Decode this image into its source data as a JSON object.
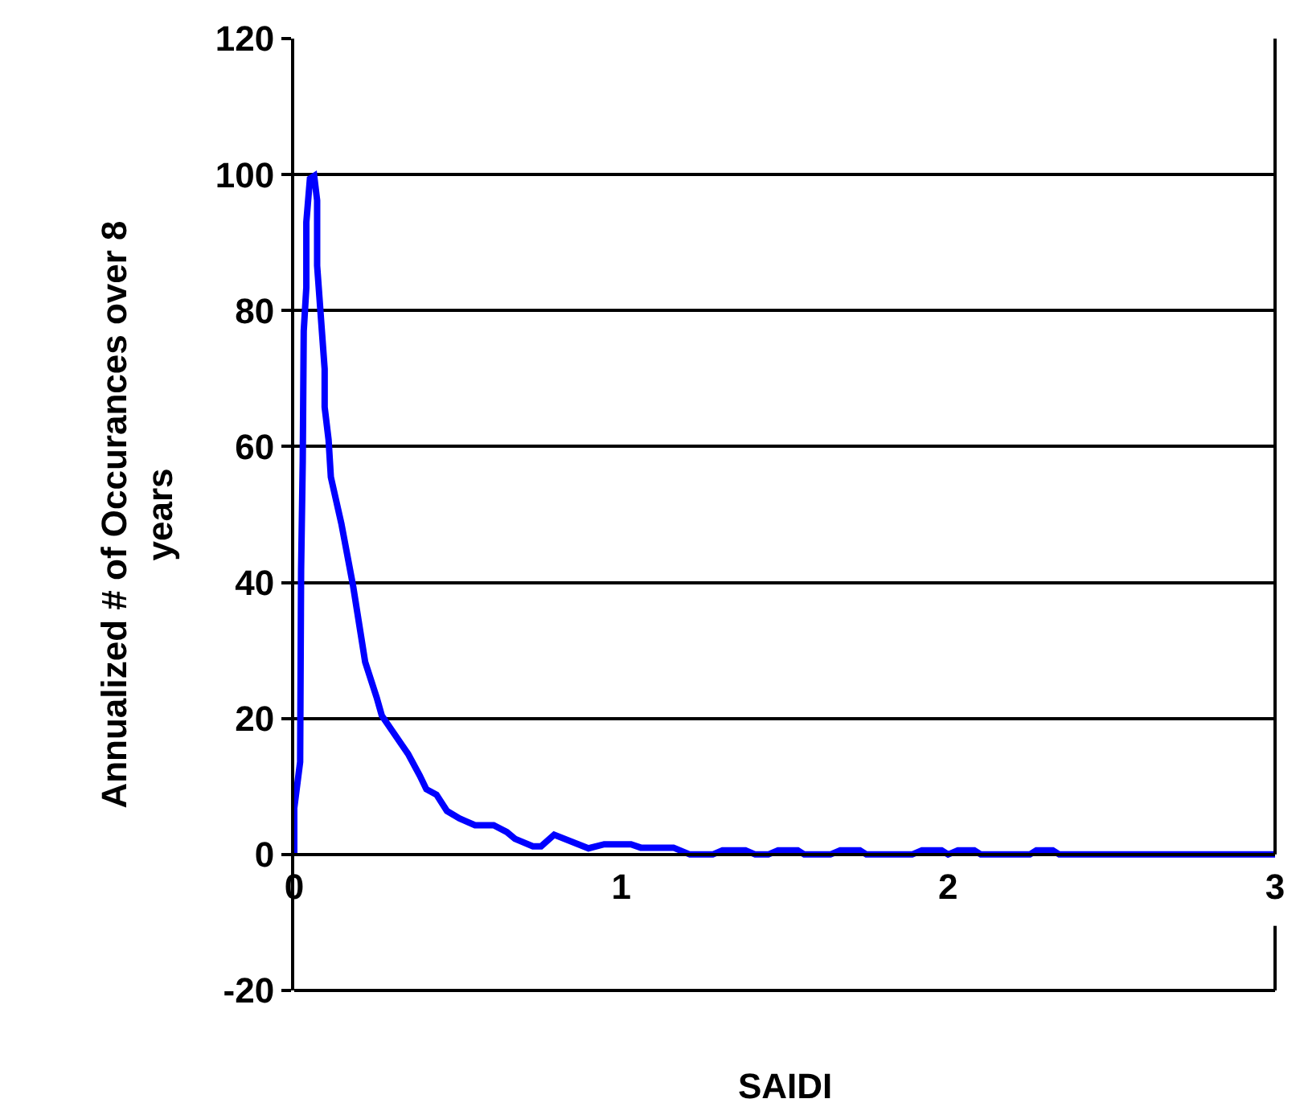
{
  "chart_data": {
    "type": "line",
    "xlabel": "SAIDI",
    "ylabel": "Annualized # of Occurances over 8 years",
    "x": [
      0,
      0,
      0.018,
      0.021,
      0.026,
      0.029,
      0.037,
      0.037,
      0.048,
      0.061,
      0.07,
      0.07,
      0.093,
      0.093,
      0.105,
      0.112,
      0.144,
      0.18,
      0.217,
      0.252,
      0.268,
      0.348,
      0.384,
      0.404,
      0.435,
      0.467,
      0.505,
      0.553,
      0.61,
      0.65,
      0.675,
      0.73,
      0.755,
      0.795,
      0.9,
      0.948,
      1.03,
      1.06,
      1.16,
      1.21,
      1.28,
      1.31,
      1.38,
      1.41,
      1.45,
      1.48,
      1.54,
      1.56,
      1.64,
      1.67,
      1.73,
      1.75,
      1.89,
      1.92,
      1.98,
      2.0,
      2.03,
      2.08,
      2.1,
      2.25,
      2.27,
      2.32,
      2.34,
      3.0
    ],
    "series": [
      {
        "color": "#0000ff",
        "values": [
          0,
          6.8,
          13.6,
          41.9,
          57.9,
          77,
          83.4,
          93,
          99.4,
          99.8,
          96.2,
          86.6,
          71.4,
          65.8,
          61,
          55.5,
          48.7,
          39.5,
          28.3,
          23.1,
          20.4,
          14.8,
          11.6,
          9.6,
          8.8,
          6.4,
          5.3,
          4.3,
          4.3,
          3.3,
          2.3,
          1.2,
          1.2,
          2.9,
          0.9,
          1.5,
          1.5,
          1.0,
          1.0,
          0,
          0,
          0.6,
          0.6,
          0,
          0,
          0.6,
          0.6,
          0,
          0,
          0.6,
          0.6,
          0,
          0,
          0.6,
          0.6,
          0,
          0.6,
          0.6,
          0,
          0,
          0.6,
          0.6,
          0,
          0
        ]
      }
    ],
    "xlim": [
      0,
      3
    ],
    "xticks": [
      0,
      1,
      2,
      3
    ],
    "ylim": [
      -20,
      120
    ],
    "yticks": [
      -20,
      0,
      20,
      40,
      60,
      80,
      100,
      120
    ],
    "grid": "y",
    "legend": false,
    "marker": "none",
    "line_style": "solid"
  }
}
